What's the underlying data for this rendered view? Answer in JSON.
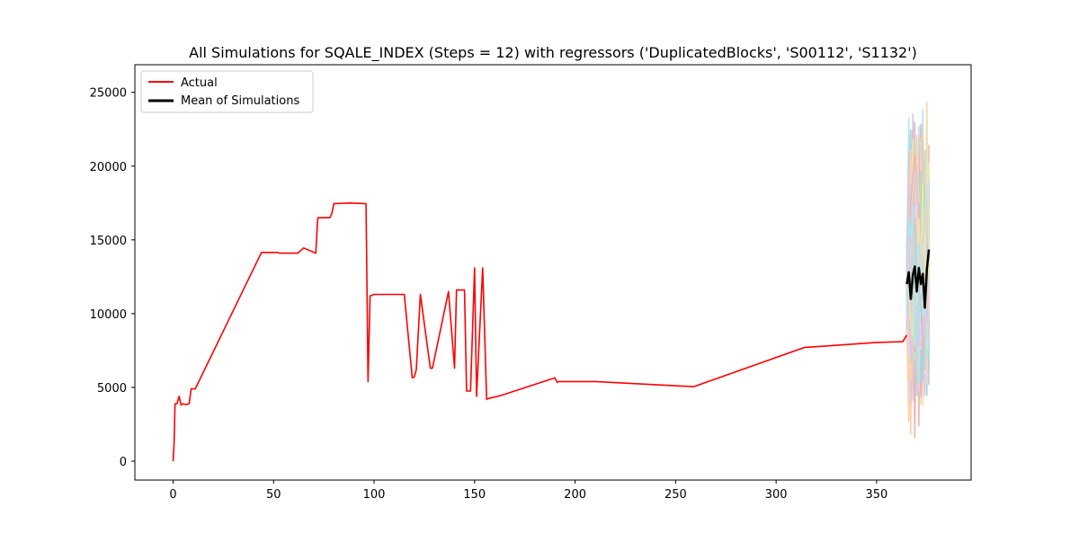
{
  "chart_data": {
    "type": "line",
    "title": "All Simulations for SQALE_INDEX (Steps = 12) with regressors ('DuplicatedBlocks', 'S00112', 'S1132')",
    "xlabel": "",
    "ylabel": "",
    "xlim": [
      -19,
      397
    ],
    "ylim": [
      -1280,
      26870
    ],
    "xticks": [
      0,
      50,
      100,
      150,
      200,
      250,
      300,
      350
    ],
    "yticks": [
      0,
      5000,
      10000,
      15000,
      20000,
      25000
    ],
    "grid": false,
    "legend": {
      "position": "upper left",
      "entries": [
        "Actual",
        "Mean of Simulations"
      ]
    },
    "colors": {
      "actual": "#ff0000",
      "mean": "#000000",
      "axes": "#000000"
    },
    "series": [
      {
        "name": "Actual",
        "color": "#ff0000",
        "x": [
          0,
          0.5,
          1,
          2,
          3,
          4,
          5,
          6,
          7,
          8,
          9,
          10,
          11,
          44,
          52,
          53,
          60,
          62,
          65,
          71,
          72,
          76,
          78,
          79,
          80,
          88,
          96,
          97,
          98,
          100,
          101,
          115,
          119,
          120,
          121,
          123,
          128,
          129,
          137,
          140,
          141,
          142,
          145,
          146,
          148,
          150,
          151,
          154,
          156,
          157,
          163,
          190,
          191,
          192,
          210,
          259,
          314,
          350,
          363,
          365
        ],
        "y": [
          0,
          1200,
          3900,
          3900,
          4400,
          3800,
          3900,
          3850,
          3850,
          3900,
          4900,
          4900,
          4900,
          14150,
          14150,
          14100,
          14100,
          14100,
          14450,
          14100,
          16500,
          16500,
          16500,
          16800,
          17450,
          17500,
          17450,
          5400,
          11200,
          11300,
          11300,
          11300,
          5650,
          5700,
          6200,
          11300,
          6300,
          6300,
          11500,
          6300,
          11600,
          11600,
          11600,
          4750,
          4750,
          13100,
          4400,
          13100,
          4200,
          4250,
          4450,
          5650,
          5350,
          5400,
          5400,
          5050,
          7700,
          8050,
          8100,
          8550
        ]
      },
      {
        "name": "Mean of Simulations",
        "color": "#000000",
        "x": [
          365,
          366,
          367,
          368,
          369,
          370,
          371,
          372,
          373,
          374,
          375,
          376
        ],
        "y": [
          12000,
          12800,
          11000,
          12600,
          13200,
          11500,
          13100,
          12000,
          12700,
          10400,
          13000,
          14350
        ]
      }
    ],
    "simulations": {
      "x_start": 365,
      "steps": 12,
      "count": 100,
      "y_range": [
        400,
        25700
      ],
      "colors": [
        "#1f77b4",
        "#ff7f0e",
        "#2ca02c",
        "#d62728",
        "#9467bd",
        "#8c564b",
        "#e377c2",
        "#7f7f7f",
        "#bcbd22",
        "#17becf"
      ]
    }
  }
}
